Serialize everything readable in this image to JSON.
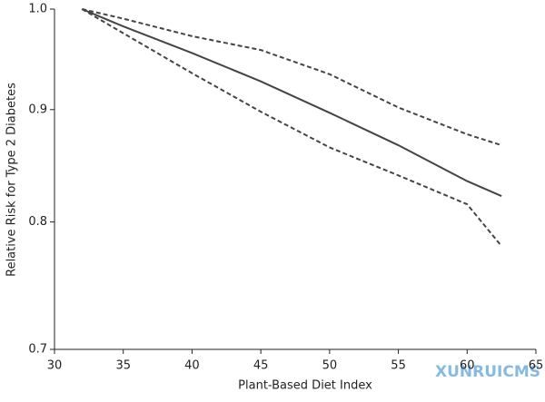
{
  "chart_data": {
    "type": "line",
    "x_label": "Plant-Based Diet Index",
    "y_label": "Relative Risk for Type 2 Diabetes",
    "x": [
      32,
      35,
      40,
      45,
      50,
      55,
      60,
      62.5
    ],
    "series": [
      {
        "color": "#444444",
        "dashed": false,
        "values": [
          1.0,
          0.982,
          0.955,
          0.927,
          0.897,
          0.867,
          0.835,
          0.822
        ]
      },
      {
        "color": "#444444",
        "dashed": true,
        "values": [
          1.0,
          0.99,
          0.972,
          0.958,
          0.934,
          0.902,
          0.877,
          0.867
        ]
      },
      {
        "color": "#444444",
        "dashed": true,
        "values": [
          1.0,
          0.975,
          0.935,
          0.898,
          0.865,
          0.84,
          0.815,
          0.78
        ]
      }
    ],
    "xlim": [
      30,
      65
    ],
    "xticks": [
      30,
      35,
      40,
      45,
      50,
      55,
      60,
      65
    ],
    "ylim": [
      0.7,
      1.0
    ],
    "yticks": [
      {
        "value": 0.7,
        "label": "0.7"
      },
      {
        "value": 0.8,
        "label": "0.8"
      },
      {
        "value": 0.9,
        "label": "0.9"
      },
      {
        "value": 1.0,
        "label": "1.0"
      }
    ],
    "log_y": true,
    "watermark": "XUNRUICMS"
  }
}
